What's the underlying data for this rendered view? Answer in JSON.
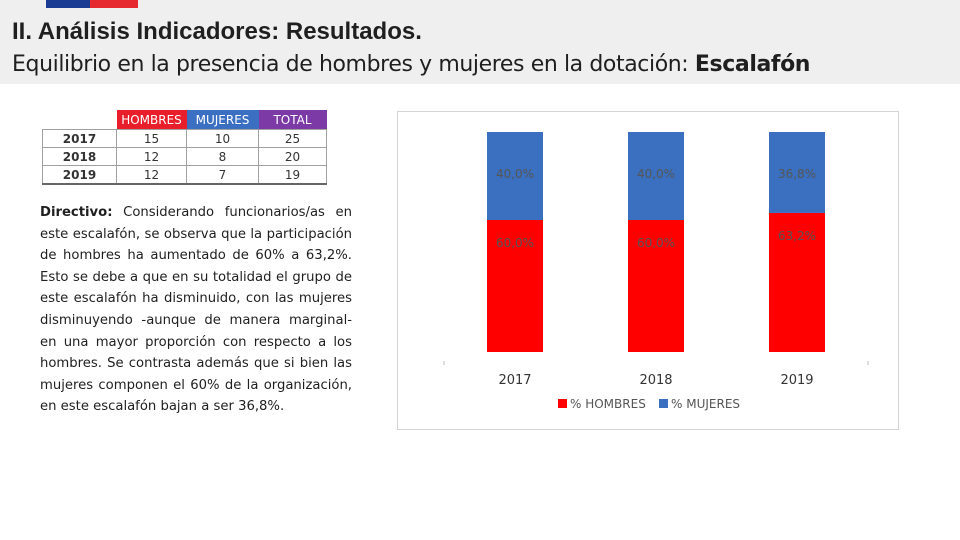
{
  "header": {
    "title": "II. Análisis Indicadores: Resultados.",
    "subtitle": "Equilibrio en la presencia de hombres y mujeres en la dotación:",
    "subtitle_strong": "Escalafón"
  },
  "colors": {
    "hombres": "#ff0000",
    "mujeres": "#3a70bf",
    "total": "#7b3aa6",
    "flag_blue": "#1a3d93",
    "flag_red": "#e5292f"
  },
  "table": {
    "headers": [
      "HOMBRES",
      "MUJERES",
      "TOTAL"
    ],
    "rows": [
      {
        "year": "2017",
        "hombres": "15",
        "mujeres": "10",
        "total": "25"
      },
      {
        "year": "2018",
        "hombres": "12",
        "mujeres": "8",
        "total": "20"
      },
      {
        "year": "2019",
        "hombres": "12",
        "mujeres": "7",
        "total": "19"
      }
    ]
  },
  "text": {
    "label": "Directivo:",
    "body": "Considerando funcionarios/as en este escalafón, se observa que la participación de hombres ha aumentado de 60% a 63,2%. Esto se debe a que en su totalidad el grupo de este escalafón ha disminuido, con las mujeres disminuyendo -aunque de manera marginal- en una mayor proporción con respecto a los hombres. Se contrasta además que si bien las mujeres componen el 60% de la organización, en este escalafón bajan a ser 36,8%."
  },
  "chart_data": {
    "type": "bar",
    "stacked": true,
    "categories": [
      "2017",
      "2018",
      "2019"
    ],
    "series": [
      {
        "name": "% HOMBRES",
        "values": [
          60.0,
          60.0,
          63.2
        ],
        "labels": [
          "60,0%",
          "60,0%",
          "63,2%"
        ],
        "color": "#ff0000"
      },
      {
        "name": "% MUJERES",
        "values": [
          40.0,
          40.0,
          36.8
        ],
        "labels": [
          "40,0%",
          "40,0%",
          "36,8%"
        ],
        "color": "#3a70bf"
      }
    ],
    "ylim": [
      0,
      100
    ],
    "legend": "bottom",
    "title": "",
    "xlabel": "",
    "ylabel": ""
  }
}
